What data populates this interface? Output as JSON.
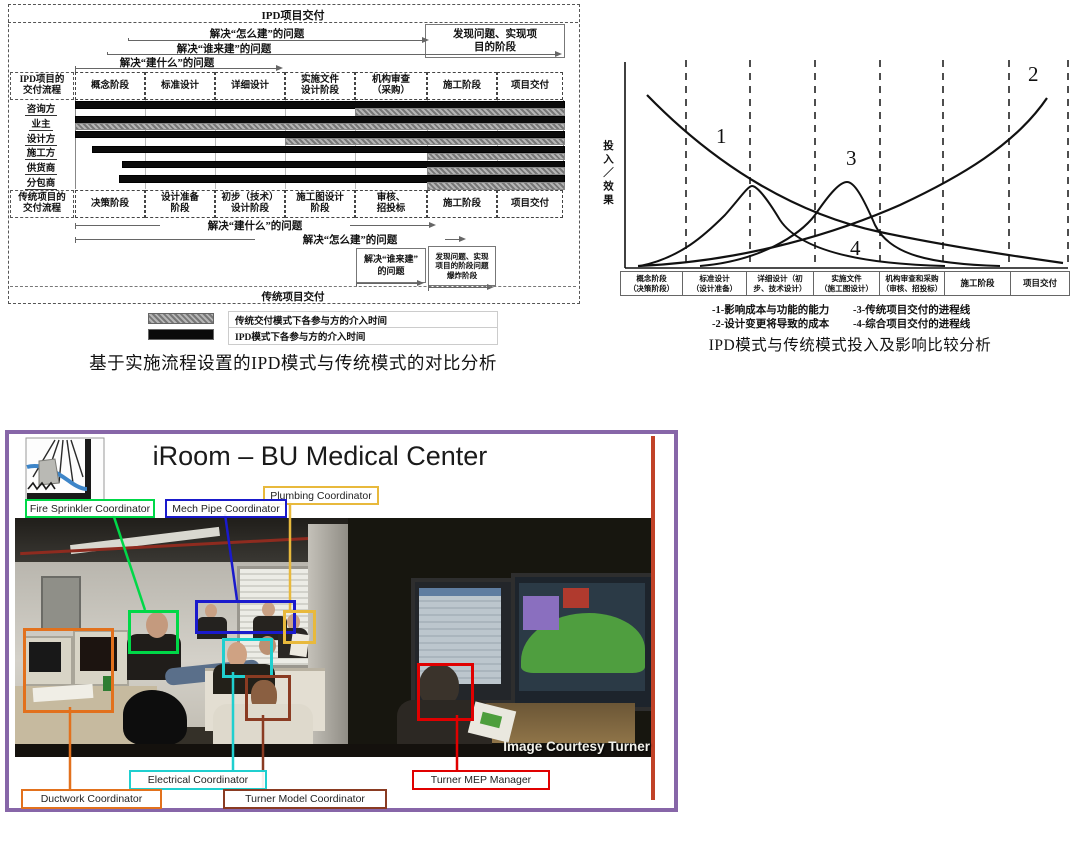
{
  "left_diagram": {
    "top_label": "IPD项目交付",
    "q_how": "解决“怎么建”的问题",
    "q_who": "解决“谁来建”的问题",
    "q_what": "解决“建什么”的问题",
    "discover_box": "发现问题、实现项\n目的阶段",
    "ipd_flow_label": "IPD项目的\n交付流程",
    "trad_flow_label": "传统项目的\n交付流程",
    "ipd_phases": [
      "概念阶段",
      "标准设计",
      "详细设计",
      "实施文件\n设计阶段",
      "机构审查\n（采购）",
      "施工阶段",
      "项目交付"
    ],
    "participants": [
      {
        "name": "咨询方",
        "ipd": [
          0,
          1
        ],
        "trad": [
          0.574,
          1
        ]
      },
      {
        "name": "业主",
        "ipd": [
          0,
          1
        ],
        "trad": [
          0,
          1
        ]
      },
      {
        "name": "设计方",
        "ipd": [
          0,
          1
        ],
        "trad": [
          0.43,
          1
        ]
      },
      {
        "name": "施工方",
        "ipd": [
          0.035,
          1
        ],
        "trad": [
          0.721,
          1
        ]
      },
      {
        "name": "供货商",
        "ipd": [
          0.096,
          1
        ],
        "trad": [
          0.721,
          1
        ]
      },
      {
        "name": "分包商",
        "ipd": [
          0.09,
          1
        ],
        "trad": [
          0.721,
          1
        ]
      }
    ],
    "trad_phases": [
      "决策阶段",
      "设计准备\n阶段",
      "初步（技术）\n设计阶段",
      "施工图设计\n阶段",
      "审核、\n招投标",
      "施工阶段",
      "项目交付"
    ],
    "trad_q_what": "解决“建什么”的问题",
    "trad_q_how": "解决“怎么建”的问题",
    "trad_q_who": "解决“谁来建”\n的问题",
    "explosion_box": "发现问题、实现\n项目的阶段问题\n爆炸阶段",
    "bottom_label": "传统项目交付",
    "legend": [
      {
        "style": "hatched",
        "label": "传统交付模式下各参与方的介入时间"
      },
      {
        "style": "solid-black",
        "label": "IPD模式下各参与方的介入时间"
      }
    ],
    "colors": {
      "ipd_bar": "#0b0b0b",
      "trad_bar": "#8a8a8a"
    },
    "caption": "基于实施流程设置的IPD模式与传统模式的对比分析"
  },
  "chart_data": {
    "type": "line",
    "title": "IPD模式与传统模式投入及影响比较分析",
    "xlabel": "",
    "ylabel": "投入／效果",
    "categories": [
      "概念阶段（决策阶段）",
      "标准设计（设计准备）",
      "详细设计（初步、技术设计）",
      "实施文件（施工图设计）",
      "机构审查和采购（审核、招投标）",
      "施工阶段",
      "项目交付"
    ],
    "categories_display": [
      {
        "l1": "概念阶段",
        "l2": "（决策阶段）"
      },
      {
        "l1": "标准设计",
        "l2": "（设计准备）"
      },
      {
        "l1": "详细设计（初",
        "l2": "步、技术设计）"
      },
      {
        "l1": "实施文件",
        "l2": "（施工图设计）"
      },
      {
        "l1": "机构审查和采购",
        "l2": "（审核、招投标）"
      },
      {
        "l1": "施工阶段",
        "l2": ""
      },
      {
        "l1": "项目交付",
        "l2": ""
      }
    ],
    "series": [
      {
        "id": "1",
        "name": "影响成本与功能的能力",
        "legend": "-1-影响成本与功能的能力",
        "x": [
          0,
          1,
          2,
          3,
          4,
          5,
          6,
          7
        ],
        "values": [
          1.0,
          0.75,
          0.55,
          0.4,
          0.28,
          0.18,
          0.08,
          0.02
        ]
      },
      {
        "id": "2",
        "name": "设计变更将导致的成本",
        "legend": "-2-设计变更将导致的成本",
        "x": [
          0,
          1,
          2,
          3,
          4,
          5,
          6,
          7
        ],
        "values": [
          0.01,
          0.03,
          0.07,
          0.15,
          0.28,
          0.45,
          0.7,
          1.0
        ]
      },
      {
        "id": "3",
        "name": "传统项目交付的进程线",
        "legend": "-3-传统项目交付的进程线",
        "x": [
          0,
          1,
          2,
          2.5,
          3,
          3.5,
          4,
          4.5,
          5,
          6,
          7
        ],
        "values": [
          0,
          0.02,
          0.1,
          0.2,
          0.35,
          0.52,
          0.3,
          0.1,
          0.03,
          0.01,
          0
        ]
      },
      {
        "id": "4",
        "name": "综合项目交付的进程线",
        "legend": "-4-综合项目交付的进程线",
        "x": [
          0,
          0.5,
          1,
          1.5,
          2,
          2.5,
          3,
          3.5,
          4,
          5,
          6,
          7
        ],
        "values": [
          0,
          0.03,
          0.12,
          0.3,
          0.5,
          0.42,
          0.25,
          0.1,
          0.04,
          0.01,
          0,
          0
        ]
      }
    ],
    "layout_hints": {
      "grid": "dashed vertical lines at stage boundaries",
      "legend_position": "below axis",
      "y_scale": "relative 0-1, unlabeled"
    }
  },
  "bottom_panel": {
    "title": "iRoom – BU Medical Center",
    "credit": "Image Courtesy Turner",
    "frame_color": "#8766a8",
    "accent_line_color": "#c14227",
    "labels": [
      {
        "id": "fire",
        "text": "Fire Sprinkler Coordinator",
        "color": "#00d848"
      },
      {
        "id": "mech",
        "text": "Mech Pipe Coordinator",
        "color": "#1a1acc"
      },
      {
        "id": "plumbing",
        "text": "Plumbing Coordinator",
        "color": "#e8b93c"
      },
      {
        "id": "electrical",
        "text": "Electrical Coordinator",
        "color": "#20cfcf"
      },
      {
        "id": "ductwork",
        "text": "Ductwork Coordinator",
        "color": "#e2711d"
      },
      {
        "id": "model",
        "text": "Turner Model Coordinator",
        "color": "#8a3b22"
      },
      {
        "id": "mep",
        "text": "Turner MEP Manager",
        "color": "#e00000"
      }
    ]
  }
}
